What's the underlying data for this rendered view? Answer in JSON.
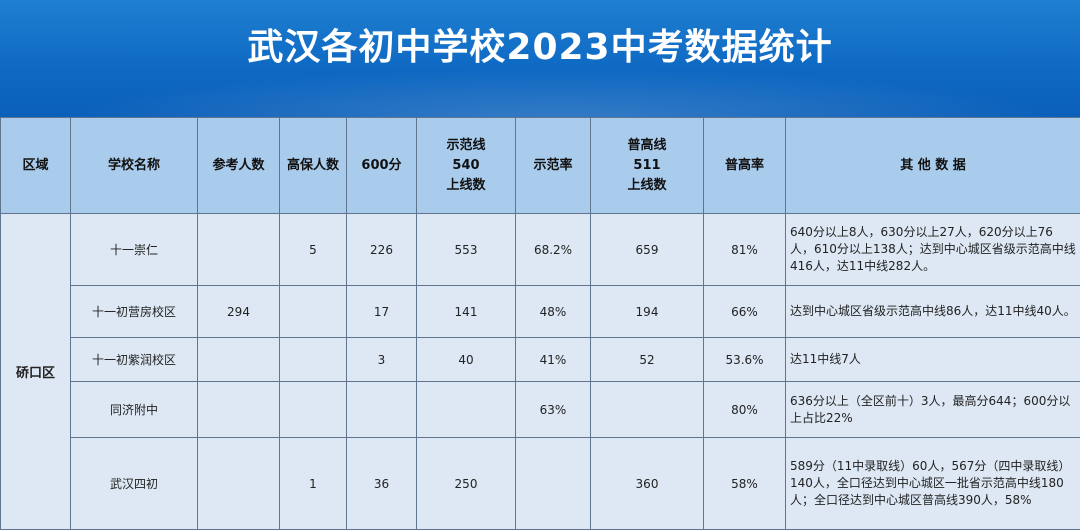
{
  "title": "武汉各初中学校2023中考数据统计",
  "headers": {
    "region": "区域",
    "school": "学校名称",
    "participants": "参考人数",
    "guaranteed": "高保人数",
    "score600": "600分",
    "model_line": [
      "示范线",
      "540",
      "上线数"
    ],
    "model_rate": "示范率",
    "general_line": [
      "普高线",
      "511",
      "上线数"
    ],
    "general_rate": "普高率",
    "other": "其 他 数 据"
  },
  "region": "硚口区",
  "rows": [
    {
      "school": "十一崇仁",
      "participants": "",
      "guaranteed": "5",
      "score600": "226",
      "model_count": "553",
      "model_rate": "68.2%",
      "general_count": "659",
      "general_rate": "81%",
      "other": "640分以上8人，630分以上27人，620分以上76人，610分以上138人；达到中心城区省级示范高中线416人，达11中线282人。"
    },
    {
      "school": "十一初营房校区",
      "participants": "294",
      "guaranteed": "",
      "score600": "17",
      "model_count": "141",
      "model_rate": "48%",
      "general_count": "194",
      "general_rate": "66%",
      "other": "达到中心城区省级示范高中线86人，达11中线40人。"
    },
    {
      "school": "十一初紫润校区",
      "participants": "",
      "guaranteed": "",
      "score600": "3",
      "model_count": "40",
      "model_rate": "41%",
      "general_count": "52",
      "general_rate": "53.6%",
      "other": "达11中线7人"
    },
    {
      "school": "同济附中",
      "participants": "",
      "guaranteed": "",
      "score600": "",
      "model_count": "",
      "model_rate": "63%",
      "general_count": "",
      "general_rate": "80%",
      "other": "636分以上（全区前十）3人，最高分644；600分以上占比22%"
    },
    {
      "school": "武汉四初",
      "participants": "",
      "guaranteed": "1",
      "score600": "36",
      "model_count": "250",
      "model_rate": "",
      "general_count": "360",
      "general_rate": "58%",
      "other": "589分（11中录取线）60人，567分（四中录取线）140人，全口径达到中心城区一批省示范高中线180人；全口径达到中心城区普高线390人，58%"
    }
  ]
}
